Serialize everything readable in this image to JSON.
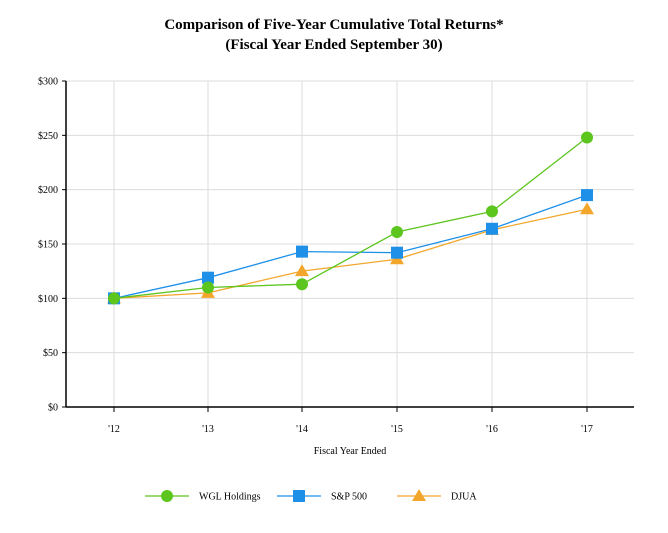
{
  "chart_data": {
    "type": "line",
    "title": "Comparison of Five-Year Cumulative Total Returns*",
    "subtitle": "(Fiscal Year Ended September 30)",
    "xlabel": "Fiscal Year Ended",
    "ylabel": "",
    "categories": [
      "'12",
      "'13",
      "'14",
      "'15",
      "'16",
      "'17"
    ],
    "ylim": [
      0,
      300
    ],
    "yticks": [
      "$0",
      "$50",
      "$100",
      "$150",
      "$200",
      "$250",
      "$300"
    ],
    "grid": true,
    "legend_position": "bottom",
    "series": [
      {
        "name": "WGL Holdings",
        "marker": "circle",
        "color": "#5cc51e",
        "values": [
          100,
          110,
          113,
          161,
          180,
          248
        ]
      },
      {
        "name": "S&P 500",
        "marker": "square",
        "color": "#1e90e8",
        "values": [
          100,
          119,
          143,
          142,
          164,
          195
        ]
      },
      {
        "name": "DJUA",
        "marker": "triangle",
        "color": "#f2a72c",
        "values": [
          100,
          105,
          125,
          136,
          163,
          182
        ]
      }
    ]
  }
}
